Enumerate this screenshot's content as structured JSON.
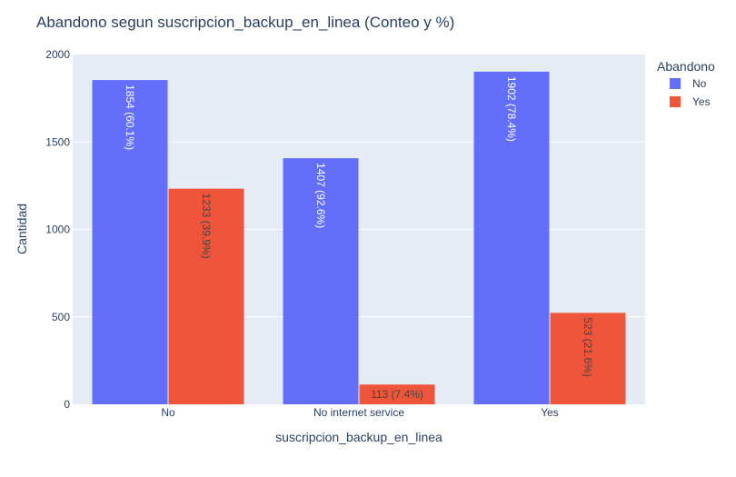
{
  "chart_data": {
    "type": "bar",
    "title": "Abandono segun suscripcion_backup_en_linea (Conteo y %)",
    "xlabel": "suscripcion_backup_en_linea",
    "ylabel": "Cantidad",
    "categories": [
      "No",
      "No internet service",
      "Yes"
    ],
    "ylim": [
      0,
      2000
    ],
    "yticks": [
      0,
      500,
      1000,
      1500,
      2000
    ],
    "grid": true,
    "legend_title": "Abandono",
    "legend_position": "right",
    "series": [
      {
        "name": "No",
        "color": "#636efa",
        "values": [
          1854,
          1407,
          1902
        ],
        "labels": [
          "1854 (60.1%)",
          "1407 (92.6%)",
          "1902 (78.4%)"
        ]
      },
      {
        "name": "Yes",
        "color": "#ef553b",
        "values": [
          1233,
          113,
          523
        ],
        "labels": [
          "1233 (39.9%)",
          "113 (7.4%)",
          "523 (21.6%)"
        ]
      }
    ]
  }
}
